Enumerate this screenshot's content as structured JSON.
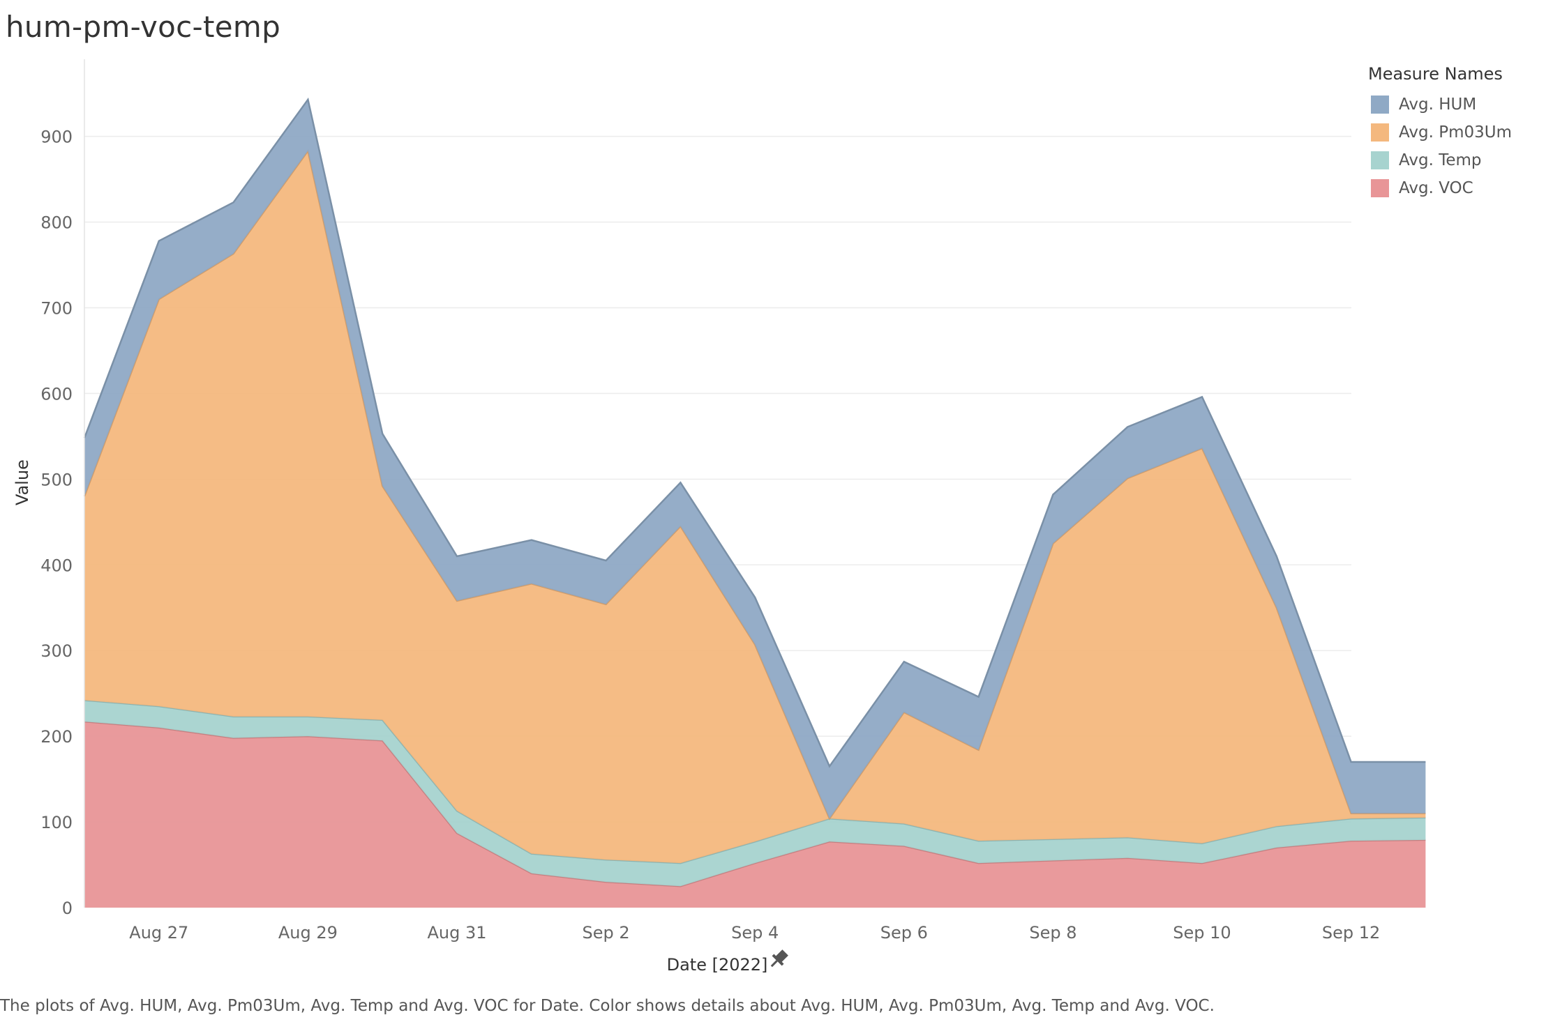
{
  "chart_data": {
    "type": "area",
    "stacked": true,
    "title": "hum-pm-voc-temp",
    "xlabel": "Date [2022]",
    "ylabel": "Value",
    "ylim": [
      0,
      990
    ],
    "yticks": [
      0,
      100,
      200,
      300,
      400,
      500,
      600,
      700,
      800,
      900
    ],
    "x": [
      "Aug 26",
      "Aug 27",
      "Aug 28",
      "Aug 29",
      "Aug 30",
      "Aug 31",
      "Sep 1",
      "Sep 2",
      "Sep 3",
      "Sep 4",
      "Sep 5",
      "Sep 6",
      "Sep 7",
      "Sep 8",
      "Sep 9",
      "Sep 10",
      "Sep 11",
      "Sep 12",
      "Sep 13"
    ],
    "xticks": [
      "Aug 27",
      "Aug 29",
      "Aug 31",
      "Sep 2",
      "Sep 4",
      "Sep 6",
      "Sep 8",
      "Sep 10",
      "Sep 12"
    ],
    "series": [
      {
        "name": "Avg. VOC",
        "color": "#e89597",
        "values": [
          217,
          210,
          198,
          200,
          195,
          87,
          40,
          30,
          25,
          52,
          77,
          72,
          52,
          55,
          58,
          52,
          70,
          78,
          79
        ]
      },
      {
        "name": "Avg. Temp",
        "color": "#a7d3cf",
        "values": [
          25,
          25,
          25,
          23,
          24,
          26,
          23,
          26,
          27,
          25,
          27,
          26,
          26,
          25,
          24,
          23,
          25,
          26,
          26
        ]
      },
      {
        "name": "Avg. Pm03Um",
        "color": "#f4b87e",
        "values": [
          238,
          475,
          540,
          660,
          273,
          245,
          315,
          298,
          393,
          230,
          0,
          130,
          106,
          345,
          419,
          461,
          255,
          6,
          5
        ]
      },
      {
        "name": "Avg. HUM",
        "color": "#8fa9c5",
        "values": [
          68,
          68,
          60,
          60,
          61,
          52,
          51,
          51,
          51,
          55,
          61,
          59,
          62,
          57,
          60,
          60,
          60,
          60,
          60
        ]
      }
    ],
    "legend_title": "Measure Names",
    "legend_order": [
      "Avg. HUM",
      "Avg. Pm03Um",
      "Avg. Temp",
      "Avg. VOC"
    ],
    "caption": "The plots of Avg. HUM, Avg. Pm03Um, Avg. Temp and Avg. VOC for Date.  Color shows details about Avg. HUM, Avg. Pm03Um, Avg. Temp and Avg. VOC."
  }
}
